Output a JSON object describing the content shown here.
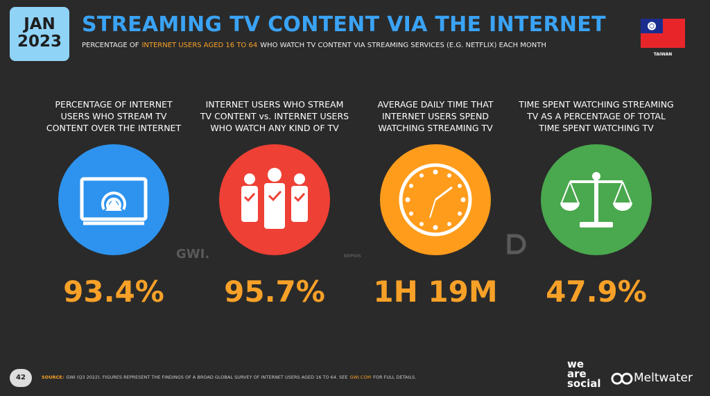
{
  "header": {
    "month": "JAN",
    "year": "2023",
    "title": "STREAMING TV CONTENT VIA THE INTERNET",
    "subtitle_start": "PERCENTAGE OF",
    "subtitle_highlight": "INTERNET USERS AGED 16 TO 64",
    "subtitle_end": "WHO WATCH TV CONTENT VIA STREAMING SERVICES (E.G. NETFLIX) EACH MONTH",
    "country": "TAIWAN"
  },
  "items": [
    {
      "label_lines": [
        "PERCENTAGE OF INTERNET",
        "USERS WHO STREAM TV",
        "CONTENT OVER THE INTERNET"
      ],
      "value": "93.4%"
    },
    {
      "label_lines": [
        "INTERNET USERS WHO STREAM",
        "TV CONTENT vs. INTERNET USERS",
        "WHO WATCH ANY KIND OF TV"
      ],
      "value": "95.7%"
    },
    {
      "label_lines": [
        "AVERAGE DAILY TIME THAT",
        "INTERNET USERS SPEND",
        "WATCHING STREAMING TV"
      ],
      "value": "1H 19M"
    },
    {
      "label_lines": [
        "TIME SPENT WATCHING STREAMING",
        "TV AS A PERCENTAGE OF TOTAL",
        "TIME SPENT WATCHING TV"
      ],
      "value": "47.9%"
    }
  ],
  "watermarks": {
    "gwi": "GWI.",
    "kepios": "KEPIOS"
  },
  "footer": {
    "page_number": "42",
    "source_label": "SOURCE:",
    "source_text": "GWI (Q3 2022). FIGURES REPRESENT THE FINDINGS OF A BROAD GLOBAL SURVEY OF INTERNET USERS AGED 16 TO 64. SEE",
    "source_link": "GWI.COM",
    "source_tail": "FOR FULL DETAILS.",
    "logo_was": [
      "we",
      "are",
      "social"
    ],
    "logo_meltwater": "Meltwater"
  }
}
